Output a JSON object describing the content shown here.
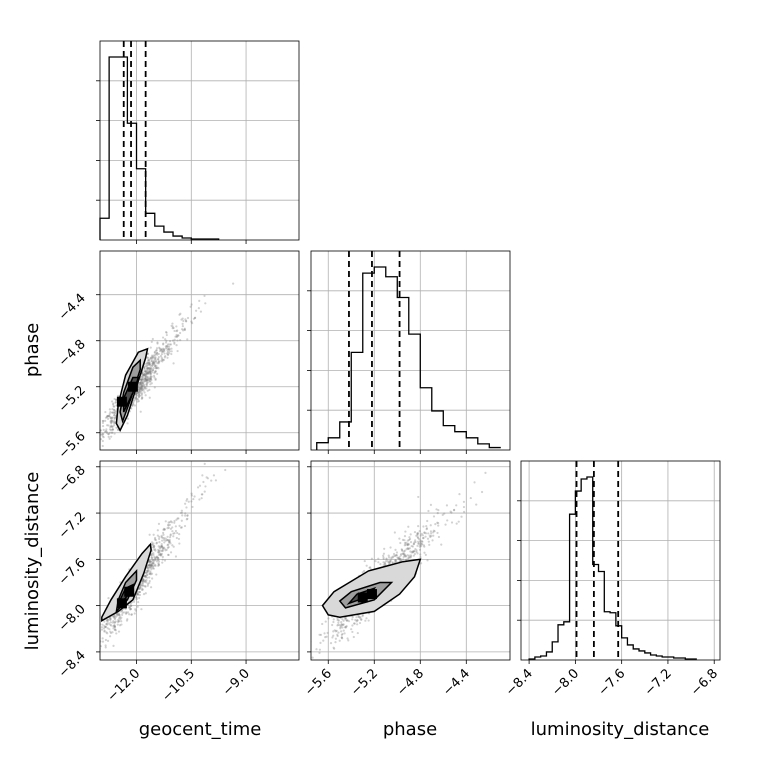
{
  "chart_data": {
    "type": "corner",
    "grid": true,
    "colors": {
      "hist": "#000000",
      "points": "#7f7f7f",
      "grid": "#b0b0b0",
      "quantile": "#000000",
      "contour_fill": [
        "#d9d9d9",
        "#9e9e9e",
        "#4d4d4d",
        "#000000"
      ]
    },
    "parameters": [
      "geocent_time",
      "phase",
      "luminosity_distance"
    ],
    "labels": {
      "geocent_time": "geocent_time",
      "phase": "phase",
      "luminosity_distance": "luminosity_distance"
    },
    "ranges": {
      "geocent_time": [
        -13.0,
        -7.55
      ],
      "phase": [
        -5.75,
        -4.02
      ],
      "luminosity_distance": [
        -8.47,
        -6.75
      ]
    },
    "ticks": {
      "geocent_time": {
        "values": [
          -12.0,
          -10.5,
          -9.0
        ],
        "labels": [
          "−12.0",
          "−10.5",
          "−9.0"
        ]
      },
      "phase": {
        "values": [
          -5.6,
          -5.2,
          -4.8,
          -4.4
        ],
        "labels": [
          "−5.6",
          "−5.2",
          "−4.8",
          "−4.4"
        ]
      },
      "luminosity_distance": {
        "values": [
          -8.4,
          -8.0,
          -7.6,
          -7.2,
          -6.8
        ],
        "labels": [
          "−8.4",
          "−8.0",
          "−7.6",
          "−7.2",
          "−6.8"
        ]
      }
    },
    "quantiles": {
      "geocent_time": [
        -12.35,
        -12.15,
        -11.75
      ],
      "phase": [
        -5.42,
        -5.22,
        -4.98
      ],
      "luminosity_distance": [
        -7.99,
        -7.84,
        -7.63
      ]
    },
    "histograms": {
      "geocent_time": {
        "edges": [
          -13.0,
          -12.75,
          -12.5,
          -12.25,
          -12.0,
          -11.75,
          -11.5,
          -11.25,
          -11.0,
          -10.75,
          -10.5,
          -10.25,
          -10.0,
          -9.75
        ],
        "counts": [
          22,
          185,
          185,
          118,
          72,
          27,
          14,
          8,
          4,
          2,
          1,
          1,
          1,
          0
        ]
      },
      "phase": {
        "edges": [
          -5.7,
          -5.6,
          -5.5,
          -5.4,
          -5.3,
          -5.2,
          -5.1,
          -5.0,
          -4.9,
          -4.8,
          -4.7,
          -4.6,
          -4.5,
          -4.4,
          -4.3,
          -4.2,
          -4.1
        ],
        "counts": [
          6,
          10,
          23,
          80,
          145,
          150,
          142,
          125,
          95,
          51,
          32,
          20,
          15,
          10,
          5,
          2
        ]
      },
      "luminosity_distance": {
        "edges": [
          -8.4,
          -8.35,
          -8.3,
          -8.25,
          -8.2,
          -8.15,
          -8.1,
          -8.05,
          -8.0,
          -7.95,
          -7.9,
          -7.85,
          -7.8,
          -7.75,
          -7.7,
          -7.65,
          -7.6,
          -7.55,
          -7.5,
          -7.45,
          -7.4,
          -7.35,
          -7.3,
          -7.25,
          -7.2,
          -7.15,
          -7.1,
          -7.05,
          -7.0,
          -6.95
        ],
        "counts": [
          1,
          3,
          4,
          8,
          18,
          35,
          38,
          145,
          168,
          180,
          182,
          95,
          88,
          48,
          47,
          34,
          22,
          15,
          11,
          9,
          7,
          5,
          4,
          3,
          3,
          2,
          2,
          1,
          1
        ]
      }
    },
    "joint": [
      {
        "x": "geocent_time",
        "y": "phase",
        "mean": [
          -12.1,
          -5.25
        ],
        "sd": [
          0.45,
          0.2
        ],
        "corr": 0.93,
        "contours": [
          [
            [
              -12.45,
              -5.58
            ],
            [
              -12.25,
              -5.45
            ],
            [
              -11.95,
              -5.15
            ],
            [
              -11.75,
              -4.95
            ],
            [
              -11.7,
              -4.87
            ],
            [
              -11.95,
              -4.9
            ],
            [
              -12.3,
              -5.1
            ],
            [
              -12.5,
              -5.35
            ],
            [
              -12.55,
              -5.52
            ]
          ],
          [
            [
              -12.38,
              -5.5
            ],
            [
              -12.15,
              -5.3
            ],
            [
              -11.9,
              -5.05
            ],
            [
              -11.9,
              -4.97
            ],
            [
              -12.1,
              -5.03
            ],
            [
              -12.35,
              -5.25
            ],
            [
              -12.45,
              -5.42
            ]
          ],
          [
            [
              -12.35,
              -5.42
            ],
            [
              -12.05,
              -5.22
            ],
            [
              -11.95,
              -5.12
            ],
            [
              -12.1,
              -5.12
            ],
            [
              -12.35,
              -5.3
            ]
          ]
        ],
        "peaks": [
          [
            -12.4,
            -5.33
          ],
          [
            -12.1,
            -5.2
          ]
        ]
      },
      {
        "x": "geocent_time",
        "y": "luminosity_distance",
        "mean": [
          -12.1,
          -7.85
        ],
        "sd": [
          0.45,
          0.22
        ],
        "corr": 0.92,
        "contours": [
          [
            [
              -12.95,
              -8.13
            ],
            [
              -12.5,
              -8.05
            ],
            [
              -12.1,
              -7.95
            ],
            [
              -11.8,
              -7.72
            ],
            [
              -11.6,
              -7.52
            ],
            [
              -11.62,
              -7.47
            ],
            [
              -11.85,
              -7.55
            ],
            [
              -12.3,
              -7.75
            ],
            [
              -12.7,
              -7.95
            ],
            [
              -12.95,
              -8.1
            ]
          ],
          [
            [
              -12.55,
              -8.05
            ],
            [
              -12.25,
              -7.95
            ],
            [
              -12.0,
              -7.78
            ],
            [
              -12.0,
              -7.7
            ],
            [
              -12.3,
              -7.8
            ],
            [
              -12.5,
              -7.95
            ]
          ],
          [
            [
              -12.5,
              -8.0
            ],
            [
              -12.2,
              -7.9
            ],
            [
              -12.1,
              -7.82
            ],
            [
              -12.3,
              -7.85
            ],
            [
              -12.45,
              -7.95
            ]
          ]
        ],
        "peaks": [
          [
            -12.4,
            -7.98
          ],
          [
            -12.2,
            -7.88
          ]
        ]
      },
      {
        "x": "phase",
        "y": "luminosity_distance",
        "mean": [
          -5.2,
          -7.85
        ],
        "sd": [
          0.2,
          0.22
        ],
        "corr": 0.9,
        "contours": [
          [
            [
              -5.6,
              -8.08
            ],
            [
              -5.5,
              -8.1
            ],
            [
              -5.2,
              -8.05
            ],
            [
              -4.98,
              -7.9
            ],
            [
              -4.85,
              -7.75
            ],
            [
              -4.8,
              -7.6
            ],
            [
              -4.95,
              -7.62
            ],
            [
              -5.25,
              -7.7
            ],
            [
              -5.55,
              -7.88
            ],
            [
              -5.65,
              -8.0
            ]
          ],
          [
            [
              -5.45,
              -8.02
            ],
            [
              -5.2,
              -7.95
            ],
            [
              -5.05,
              -7.8
            ],
            [
              -5.15,
              -7.8
            ],
            [
              -5.4,
              -7.88
            ],
            [
              -5.5,
              -7.96
            ]
          ],
          [
            [
              -5.42,
              -7.98
            ],
            [
              -5.25,
              -7.92
            ],
            [
              -5.2,
              -7.85
            ],
            [
              -5.35,
              -7.9
            ]
          ]
        ],
        "peaks": [
          [
            -5.3,
            -7.93
          ],
          [
            -5.22,
            -7.9
          ]
        ]
      }
    ]
  }
}
